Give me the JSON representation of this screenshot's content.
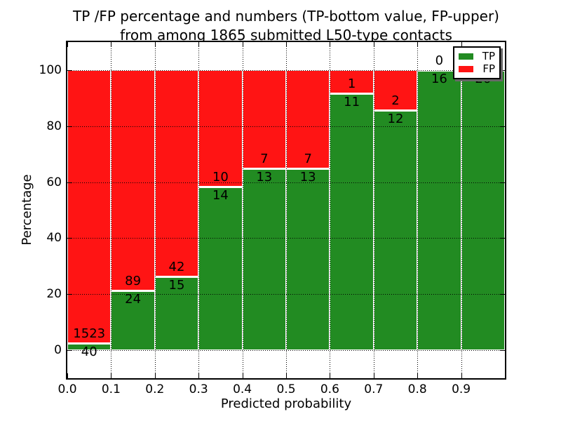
{
  "figure": {
    "title_line1": "TP /FP percentage and numbers (TP-bottom value, FP-upper)",
    "title_line2": "from among 1865 submitted L50-type contacts"
  },
  "chart_data": {
    "type": "bar",
    "stacked": true,
    "normalized": "percent of bin total (TP+FP = 100%)",
    "title": "TP /FP percentage and numbers (TP-bottom value, FP-upper)\nfrom among 1865 submitted L50-type contacts",
    "xlabel": "Predicted probability",
    "ylabel": "Percentage",
    "xlim": [
      0.0,
      1.0
    ],
    "ylim": [
      -10,
      110
    ],
    "grid": "dotted",
    "bin_edges": [
      0.0,
      0.1,
      0.2,
      0.3,
      0.4,
      0.5,
      0.6,
      0.7,
      0.8,
      0.9,
      1.0
    ],
    "x_tick_labels": [
      "0.0",
      "0.1",
      "0.2",
      "0.3",
      "0.4",
      "0.5",
      "0.6",
      "0.7",
      "0.8",
      "0.9"
    ],
    "y_ticks": [
      0,
      20,
      40,
      60,
      80,
      100
    ],
    "total_contacts": 1865,
    "series": [
      {
        "name": "TP",
        "color": "#228b22",
        "values": [
          40,
          24,
          15,
          14,
          13,
          13,
          11,
          12,
          16,
          26
        ]
      },
      {
        "name": "FP",
        "color": "#ff1414",
        "values": [
          1523,
          89,
          42,
          10,
          7,
          7,
          1,
          2,
          0,
          0
        ]
      }
    ],
    "bar_labels": {
      "tp": [
        "40",
        "24",
        "15",
        "14",
        "13",
        "13",
        "11",
        "12",
        "16",
        "26"
      ],
      "fp": [
        "1523",
        "89",
        "42",
        "10",
        "7",
        "7",
        "1",
        "2",
        "0",
        ""
      ]
    },
    "legend": {
      "position": "upper right",
      "entries": [
        "TP",
        "FP"
      ]
    }
  }
}
